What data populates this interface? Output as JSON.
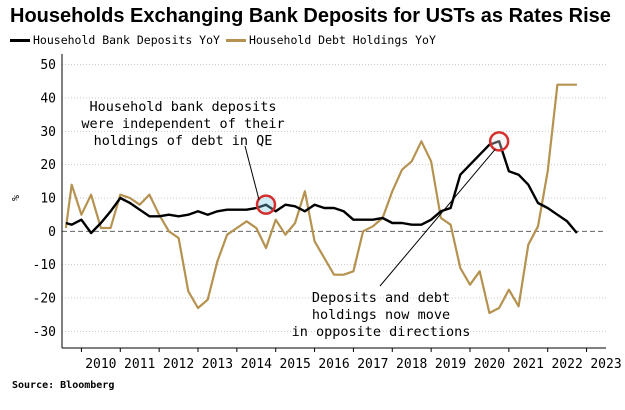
{
  "title": "Households Exchanging Bank Deposits for USTs as Rates Rise",
  "source": "Source: Bloomberg",
  "chart_data": {
    "type": "line",
    "title": "Households Exchanging Bank Deposits for USTs as Rates Rise",
    "ylabel": "%",
    "xlabel": "",
    "ylim": [
      -35,
      52
    ],
    "xlim": [
      2009.5,
      2023.5
    ],
    "yticks": [
      50,
      40,
      30,
      20,
      10,
      0,
      -10,
      -20,
      -30
    ],
    "xticks": [
      "2010",
      "2011",
      "2012",
      "2013",
      "2014",
      "2015",
      "2016",
      "2017",
      "2018",
      "2019",
      "2020",
      "2021",
      "2022",
      "2023"
    ],
    "series": [
      {
        "name": "Household Bank Deposits YoY",
        "color": "#000000",
        "x": [
          2009.6,
          2009.75,
          2010.0,
          2010.25,
          2010.5,
          2010.75,
          2011.0,
          2011.25,
          2011.5,
          2011.75,
          2012.0,
          2012.25,
          2012.5,
          2012.75,
          2013.0,
          2013.25,
          2013.5,
          2013.75,
          2014.0,
          2014.25,
          2014.5,
          2014.75,
          2015.0,
          2015.25,
          2015.5,
          2015.75,
          2016.0,
          2016.25,
          2016.5,
          2016.75,
          2017.0,
          2017.25,
          2017.5,
          2017.75,
          2018.0,
          2018.25,
          2018.5,
          2018.75,
          2019.0,
          2019.25,
          2019.5,
          2019.75,
          2020.0,
          2020.25,
          2020.5,
          2020.75,
          2021.0,
          2021.25,
          2021.5,
          2021.75,
          2022.0,
          2022.25,
          2022.5,
          2022.75
        ],
        "values": [
          2.5,
          2,
          3.5,
          -0.5,
          2.5,
          6,
          10,
          8.5,
          6.5,
          4.5,
          4.5,
          5,
          4.5,
          5,
          6,
          5,
          6,
          6.5,
          6.5,
          6.5,
          7,
          8,
          6,
          8,
          7.5,
          6,
          8,
          7,
          7,
          6,
          3.5,
          3.5,
          3.5,
          4,
          2.5,
          2.5,
          2,
          2,
          3.5,
          6,
          7,
          17,
          20,
          23,
          26,
          27,
          18,
          17,
          14,
          8.5,
          7,
          5,
          3,
          -0.5
        ]
      },
      {
        "name": "Household Debt Holdings YoY",
        "color": "#b5924f",
        "x": [
          2009.6,
          2009.75,
          2010.0,
          2010.25,
          2010.5,
          2010.75,
          2011.0,
          2011.25,
          2011.5,
          2011.75,
          2012.0,
          2012.25,
          2012.5,
          2012.75,
          2013.0,
          2013.25,
          2013.5,
          2013.75,
          2014.0,
          2014.25,
          2014.5,
          2014.75,
          2015.0,
          2015.25,
          2015.5,
          2015.75,
          2016.0,
          2016.25,
          2016.5,
          2016.75,
          2017.0,
          2017.25,
          2017.5,
          2017.75,
          2018.0,
          2018.25,
          2018.5,
          2018.75,
          2019.0,
          2019.25,
          2019.5,
          2019.75,
          2020.0,
          2020.25,
          2020.5,
          2020.75,
          2021.0,
          2021.25,
          2021.5,
          2021.75,
          2022.0,
          2022.25,
          2022.5,
          2022.75
        ],
        "values": [
          1,
          14,
          5,
          11,
          1,
          1,
          11,
          10,
          8,
          11,
          5,
          0,
          -2,
          -18,
          -23,
          -20.5,
          -9,
          -1,
          1,
          3,
          1,
          -5,
          3.5,
          -1,
          2.5,
          12,
          -3,
          -8,
          -13,
          -13,
          -12,
          0,
          1.5,
          4,
          12,
          18.5,
          21,
          27,
          21,
          4,
          2,
          -11,
          -16,
          -12,
          -24.5,
          -23,
          -17.5,
          -22.5,
          -4,
          1.5,
          18,
          44,
          44,
          44
        ]
      }
    ],
    "annotations": [
      {
        "text": [
          "Household bank deposits",
          "were independent of their",
          "holdings of debt in QE"
        ]
      },
      {
        "text": [
          "Deposits and debt",
          "holdings now move",
          "in opposite directions"
        ]
      }
    ]
  }
}
